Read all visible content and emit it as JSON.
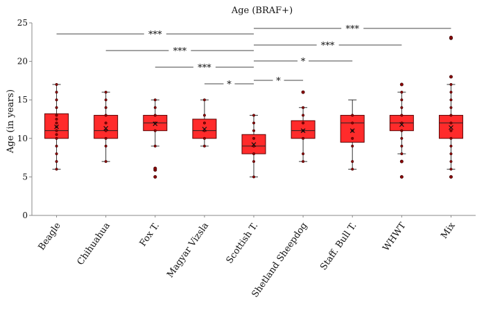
{
  "chart_data": {
    "type": "box",
    "title": "Age (BRAF+)",
    "ylabel": "Age (in years)",
    "xlabel": "",
    "ylim": [
      0,
      25
    ],
    "yticks": [
      0,
      5,
      10,
      15,
      20,
      25
    ],
    "colors": {
      "box_fill": "#ff2b2b",
      "box_stroke": "#5a0000",
      "point": "#8b0000",
      "line": "#333333"
    },
    "categories": [
      "Beagle",
      "Chihuahua",
      "Fox T.",
      "Magyar Vizsla",
      "Scottish T.",
      "Shetland Sheepdog",
      "Staff. Bull T.",
      "WHWT",
      "Mix"
    ],
    "boxes": [
      {
        "name": "Beagle",
        "min": 6,
        "q1": 10,
        "median": 11,
        "q3": 13.2,
        "max": 17,
        "mean": 11.5,
        "outliers": [],
        "points": [
          6,
          7,
          8,
          9,
          10,
          10.5,
          11,
          11.5,
          12,
          12.5,
          13,
          14,
          15,
          16,
          17
        ]
      },
      {
        "name": "Chihuahua",
        "min": 7,
        "q1": 10,
        "median": 11,
        "q3": 13,
        "max": 16,
        "mean": 11.3,
        "outliers": [],
        "points": [
          7,
          9,
          10,
          11,
          12,
          13,
          14,
          15,
          16
        ]
      },
      {
        "name": "Fox T.",
        "min": 9,
        "q1": 11,
        "median": 12,
        "q3": 13,
        "max": 15,
        "mean": 11.9,
        "outliers": [
          5,
          5.9,
          6.1
        ],
        "points": [
          9,
          11,
          12,
          13,
          14,
          15
        ]
      },
      {
        "name": "Magyar Vizsla",
        "min": 9,
        "q1": 10,
        "median": 11,
        "q3": 12.5,
        "max": 15,
        "mean": 11.2,
        "outliers": [],
        "points": [
          9,
          10,
          11,
          12,
          13,
          15
        ]
      },
      {
        "name": "Scottish T.",
        "min": 5,
        "q1": 8,
        "median": 9,
        "q3": 10.5,
        "max": 13,
        "mean": 9.2,
        "outliers": [],
        "points": [
          5,
          7,
          8,
          9,
          10,
          11,
          12,
          13
        ]
      },
      {
        "name": "Shetland Sheepdog",
        "min": 7,
        "q1": 10,
        "median": 11,
        "q3": 12.3,
        "max": 14,
        "mean": 11,
        "outliers": [
          16
        ],
        "points": [
          7,
          8,
          10,
          11,
          12,
          13,
          14
        ]
      },
      {
        "name": "Staff. Bull T.",
        "min": 6,
        "q1": 9.5,
        "median": 12,
        "q3": 13,
        "max": 15,
        "mean": 11,
        "outliers": [],
        "points": [
          6,
          7,
          9,
          10,
          11,
          12,
          13
        ]
      },
      {
        "name": "WHWT",
        "min": 8,
        "q1": 11,
        "median": 12,
        "q3": 13,
        "max": 16,
        "mean": 11.8,
        "outliers": [
          5,
          7,
          17
        ],
        "points": [
          8,
          9,
          10,
          11,
          12,
          13,
          14,
          15,
          16
        ]
      },
      {
        "name": "Mix",
        "min": 6,
        "q1": 10,
        "median": 12,
        "q3": 13,
        "max": 17,
        "mean": 11.4,
        "outliers": [
          5,
          18,
          23,
          23.1
        ],
        "points": [
          6,
          7,
          8,
          9,
          10,
          11,
          12,
          13,
          14,
          15,
          16,
          17
        ]
      }
    ],
    "significance": [
      {
        "from": "Beagle",
        "to": "Scottish T.",
        "label": "***"
      },
      {
        "from": "Chihuahua",
        "to": "Scottish T.",
        "label": "***"
      },
      {
        "from": "Fox T.",
        "to": "Scottish T.",
        "label": "***"
      },
      {
        "from": "Magyar Vizsla",
        "to": "Scottish T.",
        "label": "*"
      },
      {
        "from": "Scottish T.",
        "to": "Shetland Sheepdog",
        "label": "*"
      },
      {
        "from": "Scottish T.",
        "to": "Staff. Bull T.",
        "label": "*"
      },
      {
        "from": "Scottish T.",
        "to": "WHWT",
        "label": "***"
      },
      {
        "from": "Scottish T.",
        "to": "Mix",
        "label": "***"
      }
    ]
  }
}
